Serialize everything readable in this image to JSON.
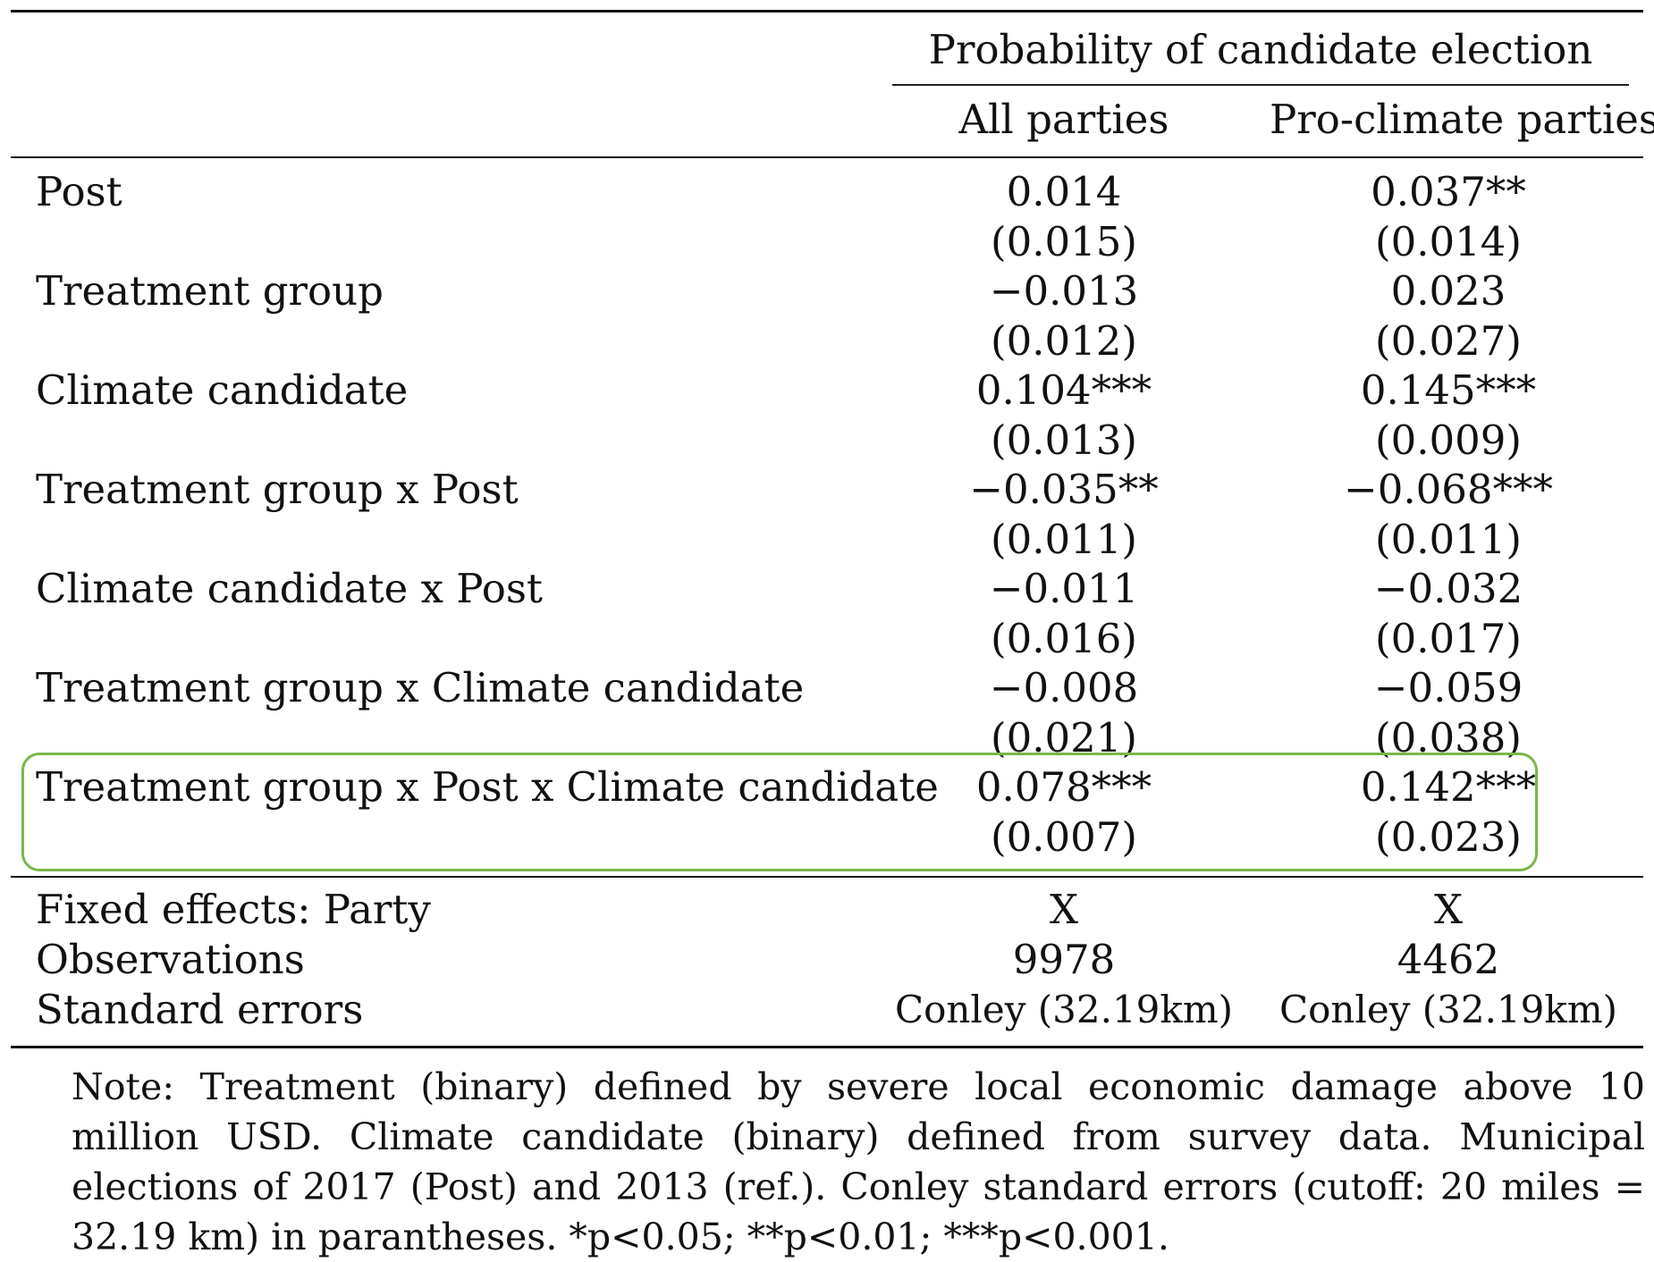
{
  "table": {
    "group_header": "Probability of candidate election",
    "col_headers": [
      "All parties",
      "Pro-climate parties"
    ],
    "coef_rows": [
      {
        "label": "Post",
        "c1": "0.014",
        "se1": "(0.015)",
        "c2": "0.037**",
        "se2": "(0.014)"
      },
      {
        "label": "Treatment group",
        "c1": "−0.013",
        "se1": "(0.012)",
        "c2": "0.023",
        "se2": "(0.027)"
      },
      {
        "label": "Climate candidate",
        "c1": "0.104***",
        "se1": "(0.013)",
        "c2": "0.145***",
        "se2": "(0.009)"
      },
      {
        "label": "Treatment group x Post",
        "c1": "−0.035**",
        "se1": "(0.011)",
        "c2": "−0.068***",
        "se2": "(0.011)"
      },
      {
        "label": "Climate candidate x Post",
        "c1": "−0.011",
        "se1": "(0.016)",
        "c2": "−0.032",
        "se2": "(0.017)"
      },
      {
        "label": "Treatment group x Climate candidate",
        "c1": "−0.008",
        "se1": "(0.021)",
        "c2": "−0.059",
        "se2": "(0.038)"
      },
      {
        "label": "Treatment group x Post x Climate candidate",
        "c1": "0.078***",
        "se1": "(0.007)",
        "c2": "0.142***",
        "se2": "(0.023)"
      }
    ],
    "footer_rows": [
      {
        "label": "Fixed effects: Party",
        "c1": "X",
        "c2": "X"
      },
      {
        "label": "Observations",
        "c1": "9978",
        "c2": "4462"
      },
      {
        "label": "Standard errors",
        "c1": "Conley (32.19km)",
        "c2": "Conley (32.19km)"
      }
    ],
    "note": "Note: Treatment (binary) defined by severe local economic damage above 10 million USD. Climate candidate (binary) defined from survey data. Municipal elections of 2017 (Post) and 2013 (ref.). Conley standard errors (cutoff: 20 miles = 32.19 km) in parantheses. *p<0.05; **p<0.01; ***p<0.001.",
    "highlight_color": "#7cb54a"
  }
}
